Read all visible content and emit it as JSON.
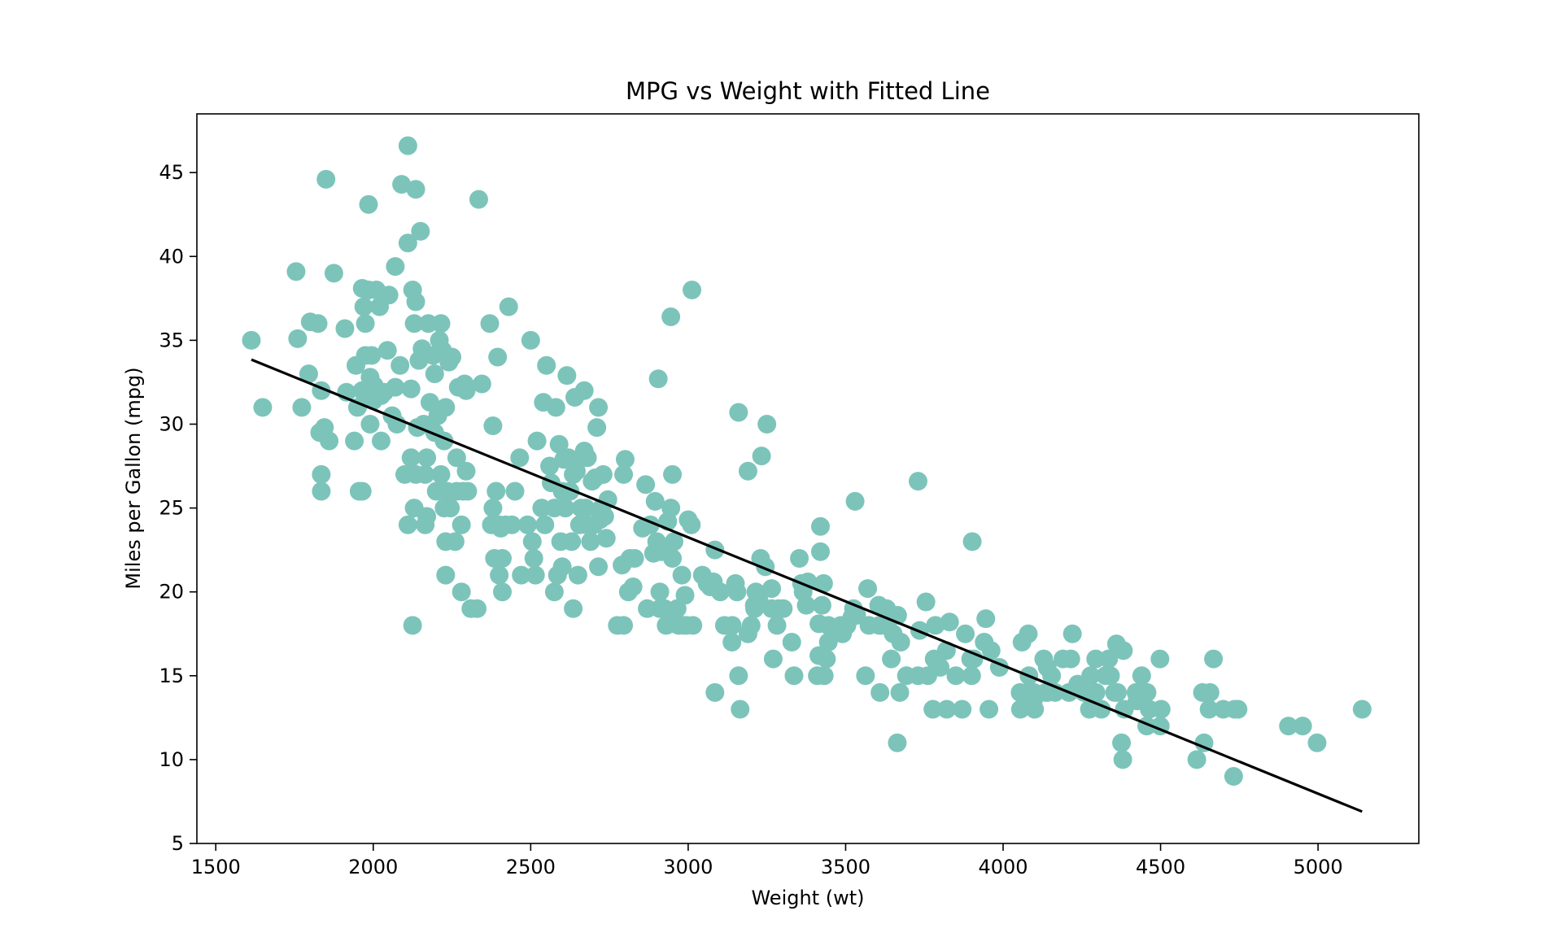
{
  "chart_data": {
    "type": "scatter",
    "title": "MPG vs Weight with Fitted Line",
    "xlabel": "Weight (wt)",
    "ylabel": "Miles per Gallon (mpg)",
    "xlim": [
      1440,
      5320
    ],
    "ylim": [
      5,
      48.5
    ],
    "xticks": [
      1500,
      2000,
      2500,
      3000,
      3500,
      4000,
      4500,
      5000
    ],
    "yticks": [
      5,
      10,
      15,
      20,
      25,
      30,
      35,
      40,
      45
    ],
    "xtick_labels": [
      "1500",
      "2000",
      "2500",
      "3000",
      "3500",
      "4000",
      "4500",
      "5000"
    ],
    "ytick_labels": [
      "5",
      "10",
      "15",
      "20",
      "25",
      "30",
      "35",
      "40",
      "45"
    ],
    "grid": false,
    "point_color": "#7cc4ba",
    "line_color": "#000000",
    "points": [
      [
        1613,
        35
      ],
      [
        1649,
        31
      ],
      [
        1755,
        39.1
      ],
      [
        1760,
        35.1
      ],
      [
        1773,
        31
      ],
      [
        1795,
        33
      ],
      [
        1800,
        36.1
      ],
      [
        1825,
        36
      ],
      [
        1830,
        29.5
      ],
      [
        1835,
        27
      ],
      [
        1835,
        26
      ],
      [
        1835,
        32
      ],
      [
        1845,
        29.8
      ],
      [
        1850,
        44.6
      ],
      [
        1860,
        29
      ],
      [
        1875,
        39
      ],
      [
        1910,
        35.7
      ],
      [
        1915,
        31.9
      ],
      [
        1940,
        29
      ],
      [
        1945,
        33.5
      ],
      [
        1950,
        31
      ],
      [
        1955,
        26
      ],
      [
        1965,
        26
      ],
      [
        1965,
        38.1
      ],
      [
        1965,
        32
      ],
      [
        1970,
        37
      ],
      [
        1975,
        36
      ],
      [
        1975,
        34.1
      ],
      [
        1980,
        31.5
      ],
      [
        1985,
        43.1
      ],
      [
        1985,
        38
      ],
      [
        1990,
        32.8
      ],
      [
        1990,
        30
      ],
      [
        1995,
        34.1
      ],
      [
        2000,
        31.4
      ],
      [
        2003,
        32.3
      ],
      [
        2010,
        38
      ],
      [
        2020,
        37
      ],
      [
        2025,
        31.7
      ],
      [
        2025,
        29
      ],
      [
        2035,
        31.9
      ],
      [
        2045,
        34.4
      ],
      [
        2050,
        37.7
      ],
      [
        2060,
        30.5
      ],
      [
        2070,
        32.2
      ],
      [
        2070,
        39.4
      ],
      [
        2075,
        30
      ],
      [
        2085,
        33.5
      ],
      [
        2090,
        44.3
      ],
      [
        2100,
        27
      ],
      [
        2110,
        24
      ],
      [
        2110,
        40.8
      ],
      [
        2110,
        46.6
      ],
      [
        2120,
        32.1
      ],
      [
        2120,
        28
      ],
      [
        2125,
        38
      ],
      [
        2125,
        18
      ],
      [
        2130,
        36
      ],
      [
        2130,
        25
      ],
      [
        2135,
        27
      ],
      [
        2135,
        44
      ],
      [
        2135,
        37.3
      ],
      [
        2140,
        29.8
      ],
      [
        2145,
        33.8
      ],
      [
        2150,
        41.5
      ],
      [
        2155,
        34.5
      ],
      [
        2160,
        30
      ],
      [
        2165,
        24
      ],
      [
        2165,
        27
      ],
      [
        2170,
        28
      ],
      [
        2170,
        24.5
      ],
      [
        2175,
        36
      ],
      [
        2180,
        31.3
      ],
      [
        2190,
        34.1
      ],
      [
        2195,
        29.5
      ],
      [
        2195,
        33
      ],
      [
        2200,
        26
      ],
      [
        2205,
        30.5
      ],
      [
        2210,
        35
      ],
      [
        2215,
        36
      ],
      [
        2215,
        27
      ],
      [
        2220,
        34.4
      ],
      [
        2225,
        25
      ],
      [
        2225,
        29
      ],
      [
        2230,
        23
      ],
      [
        2230,
        31
      ],
      [
        2230,
        21
      ],
      [
        2235,
        26
      ],
      [
        2240,
        33.7
      ],
      [
        2245,
        25
      ],
      [
        2250,
        34
      ],
      [
        2260,
        23
      ],
      [
        2265,
        28
      ],
      [
        2265,
        26
      ],
      [
        2270,
        32.2
      ],
      [
        2280,
        24
      ],
      [
        2280,
        20
      ],
      [
        2285,
        26
      ],
      [
        2290,
        32.4
      ],
      [
        2295,
        32
      ],
      [
        2295,
        27.2
      ],
      [
        2300,
        26
      ],
      [
        2310,
        19
      ],
      [
        2330,
        19
      ],
      [
        2335,
        43.4
      ],
      [
        2345,
        32.4
      ],
      [
        2370,
        36
      ],
      [
        2375,
        24
      ],
      [
        2380,
        25
      ],
      [
        2380,
        29.9
      ],
      [
        2385,
        22
      ],
      [
        2390,
        26
      ],
      [
        2395,
        34
      ],
      [
        2400,
        24
      ],
      [
        2400,
        21
      ],
      [
        2405,
        23.8
      ],
      [
        2410,
        22
      ],
      [
        2410,
        20
      ],
      [
        2420,
        24
      ],
      [
        2430,
        37
      ],
      [
        2440,
        24
      ],
      [
        2450,
        26
      ],
      [
        2465,
        28
      ],
      [
        2470,
        21
      ],
      [
        2490,
        24
      ],
      [
        2500,
        35
      ],
      [
        2505,
        23
      ],
      [
        2510,
        22
      ],
      [
        2515,
        21
      ],
      [
        2520,
        29
      ],
      [
        2535,
        25
      ],
      [
        2540,
        31.3
      ],
      [
        2545,
        24
      ],
      [
        2550,
        33.5
      ],
      [
        2560,
        27.5
      ],
      [
        2565,
        26.5
      ],
      [
        2575,
        25
      ],
      [
        2575,
        20
      ],
      [
        2580,
        31
      ],
      [
        2585,
        21
      ],
      [
        2590,
        28.8
      ],
      [
        2595,
        23
      ],
      [
        2600,
        26
      ],
      [
        2600,
        21.5
      ],
      [
        2605,
        27.9
      ],
      [
        2610,
        25
      ],
      [
        2615,
        32.9
      ],
      [
        2620,
        28
      ],
      [
        2625,
        26
      ],
      [
        2630,
        23
      ],
      [
        2635,
        27
      ],
      [
        2635,
        19
      ],
      [
        2640,
        31.6
      ],
      [
        2645,
        27.2
      ],
      [
        2650,
        21
      ],
      [
        2655,
        24
      ],
      [
        2660,
        25
      ],
      [
        2665,
        28
      ],
      [
        2670,
        32
      ],
      [
        2670,
        28.4
      ],
      [
        2675,
        24
      ],
      [
        2675,
        25
      ],
      [
        2680,
        28
      ],
      [
        2690,
        23
      ],
      [
        2695,
        26.6
      ],
      [
        2700,
        24
      ],
      [
        2705,
        26.8
      ],
      [
        2710,
        29.8
      ],
      [
        2715,
        31
      ],
      [
        2715,
        21.5
      ],
      [
        2720,
        24.3
      ],
      [
        2725,
        25
      ],
      [
        2730,
        27
      ],
      [
        2735,
        24.5
      ],
      [
        2740,
        23.2
      ],
      [
        2745,
        25.5
      ],
      [
        2775,
        18
      ],
      [
        2790,
        21.6
      ],
      [
        2795,
        27
      ],
      [
        2795,
        18
      ],
      [
        2800,
        27.9
      ],
      [
        2810,
        20
      ],
      [
        2815,
        22
      ],
      [
        2825,
        20.3
      ],
      [
        2830,
        22
      ],
      [
        2855,
        23.8
      ],
      [
        2865,
        26.4
      ],
      [
        2870,
        19
      ],
      [
        2880,
        24
      ],
      [
        2890,
        22.3
      ],
      [
        2895,
        25.4
      ],
      [
        2900,
        23
      ],
      [
        2905,
        32.7
      ],
      [
        2910,
        19
      ],
      [
        2910,
        20
      ],
      [
        2915,
        22.4
      ],
      [
        2925,
        19
      ],
      [
        2930,
        18
      ],
      [
        2935,
        24.2
      ],
      [
        2945,
        36.4
      ],
      [
        2945,
        25
      ],
      [
        2950,
        22
      ],
      [
        2950,
        27
      ],
      [
        2955,
        23
      ],
      [
        2955,
        18.1
      ],
      [
        2965,
        19
      ],
      [
        2970,
        18
      ],
      [
        2980,
        21
      ],
      [
        2985,
        18
      ],
      [
        2990,
        19.8
      ],
      [
        2995,
        18
      ],
      [
        3000,
        24.3
      ],
      [
        3010,
        24
      ],
      [
        3012,
        38
      ],
      [
        3015,
        18
      ],
      [
        3045,
        21
      ],
      [
        3060,
        20.5
      ],
      [
        3070,
        20.3
      ],
      [
        3080,
        20.6
      ],
      [
        3085,
        22.5
      ],
      [
        3085,
        14
      ],
      [
        3102,
        20
      ],
      [
        3115,
        18
      ],
      [
        3139,
        17
      ],
      [
        3140,
        18
      ],
      [
        3150,
        20.5
      ],
      [
        3155,
        20
      ],
      [
        3160,
        30.7
      ],
      [
        3160,
        15
      ],
      [
        3165,
        13
      ],
      [
        3190,
        27.2
      ],
      [
        3190,
        17.5
      ],
      [
        3200,
        18
      ],
      [
        3210,
        19.2
      ],
      [
        3211,
        19
      ],
      [
        3215,
        20
      ],
      [
        3225,
        19.5
      ],
      [
        3230,
        22
      ],
      [
        3233,
        28.1
      ],
      [
        3245,
        21.5
      ],
      [
        3250,
        30
      ],
      [
        3265,
        19
      ],
      [
        3265,
        20.2
      ],
      [
        3270,
        16
      ],
      [
        3282,
        18
      ],
      [
        3288,
        19
      ],
      [
        3302,
        19
      ],
      [
        3329,
        17
      ],
      [
        3336,
        15
      ],
      [
        3353,
        22
      ],
      [
        3360,
        20.5
      ],
      [
        3365,
        20
      ],
      [
        3375,
        19.2
      ],
      [
        3380,
        20.6
      ],
      [
        3410,
        15
      ],
      [
        3415,
        18.1
      ],
      [
        3415,
        16.2
      ],
      [
        3420,
        23.9
      ],
      [
        3420,
        22.4
      ],
      [
        3425,
        19.2
      ],
      [
        3430,
        20.5
      ],
      [
        3432,
        15
      ],
      [
        3439,
        16
      ],
      [
        3445,
        17
      ],
      [
        3445,
        18
      ],
      [
        3460,
        17.5
      ],
      [
        3465,
        17.6
      ],
      [
        3485,
        18
      ],
      [
        3490,
        17.5
      ],
      [
        3504,
        18
      ],
      [
        3520,
        18.5
      ],
      [
        3525,
        19
      ],
      [
        3530,
        25.4
      ],
      [
        3535,
        18.6
      ],
      [
        3563,
        15
      ],
      [
        3570,
        20.2
      ],
      [
        3574,
        18
      ],
      [
        3605,
        19.2
      ],
      [
        3607,
        18
      ],
      [
        3609,
        14
      ],
      [
        3613,
        18
      ],
      [
        3620,
        18.1
      ],
      [
        3630,
        19
      ],
      [
        3632,
        18
      ],
      [
        3645,
        16
      ],
      [
        3651,
        17.5
      ],
      [
        3664,
        11
      ],
      [
        3665,
        18.6
      ],
      [
        3672,
        14
      ],
      [
        3675,
        17
      ],
      [
        3693,
        15
      ],
      [
        3730,
        15
      ],
      [
        3730,
        26.6
      ],
      [
        3735,
        17.7
      ],
      [
        3755,
        19.4
      ],
      [
        3761,
        15
      ],
      [
        3777,
        13
      ],
      [
        3781,
        16
      ],
      [
        3785,
        18
      ],
      [
        3800,
        15.5
      ],
      [
        3820,
        16.5
      ],
      [
        3821,
        13
      ],
      [
        3830,
        18.2
      ],
      [
        3850,
        15
      ],
      [
        3870,
        13
      ],
      [
        3880,
        17.5
      ],
      [
        3897,
        16
      ],
      [
        3900,
        15
      ],
      [
        3902,
        23
      ],
      [
        3907,
        16
      ],
      [
        3940,
        17
      ],
      [
        3945,
        18.4
      ],
      [
        3955,
        13
      ],
      [
        3962,
        16.5
      ],
      [
        3988,
        15.5
      ],
      [
        4054,
        14
      ],
      [
        4055,
        13
      ],
      [
        4060,
        17
      ],
      [
        4077,
        14
      ],
      [
        4080,
        17.5
      ],
      [
        4082,
        15
      ],
      [
        4096,
        13.5
      ],
      [
        4098,
        14
      ],
      [
        4100,
        13
      ],
      [
        4129,
        16
      ],
      [
        4135,
        14
      ],
      [
        4140,
        15.5
      ],
      [
        4141,
        14
      ],
      [
        4154,
        15
      ],
      [
        4165,
        14
      ],
      [
        4190,
        16
      ],
      [
        4209,
        14
      ],
      [
        4215,
        16
      ],
      [
        4220,
        17.5
      ],
      [
        4237,
        14.5
      ],
      [
        4257,
        14
      ],
      [
        4274,
        13
      ],
      [
        4278,
        15
      ],
      [
        4294,
        16
      ],
      [
        4295,
        14
      ],
      [
        4312,
        13
      ],
      [
        4325,
        15
      ],
      [
        4335,
        16
      ],
      [
        4341,
        15
      ],
      [
        4354,
        14
      ],
      [
        4360,
        16.9
      ],
      [
        4363,
        14
      ],
      [
        4376,
        11
      ],
      [
        4380,
        10
      ],
      [
        4382,
        16.5
      ],
      [
        4385,
        13
      ],
      [
        4422,
        14
      ],
      [
        4425,
        13.5
      ],
      [
        4440,
        15
      ],
      [
        4456,
        12
      ],
      [
        4457,
        14
      ],
      [
        4464,
        13
      ],
      [
        4498,
        16
      ],
      [
        4499,
        12
      ],
      [
        4502,
        13
      ],
      [
        4615,
        10
      ],
      [
        4633,
        14
      ],
      [
        4638,
        11
      ],
      [
        4654,
        13
      ],
      [
        4657,
        14
      ],
      [
        4668,
        16
      ],
      [
        4699,
        13
      ],
      [
        4732,
        9
      ],
      [
        4735,
        13
      ],
      [
        4746,
        13
      ],
      [
        4906,
        12
      ],
      [
        4951,
        12
      ],
      [
        4997,
        11
      ],
      [
        5140,
        13
      ]
    ],
    "fit_line": {
      "x": [
        1613,
        5140
      ],
      "y": [
        33.85,
        6.9
      ]
    }
  }
}
